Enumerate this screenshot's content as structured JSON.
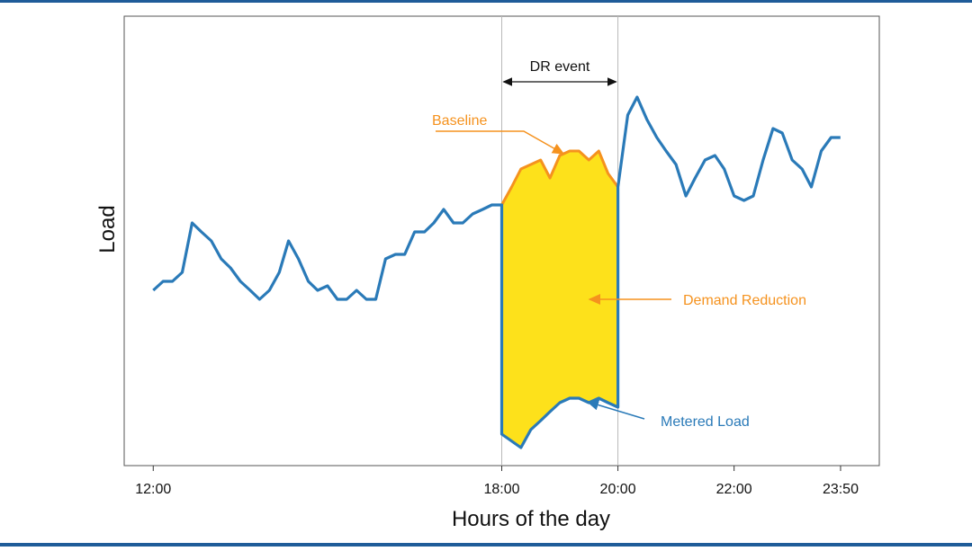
{
  "colors": {
    "frame": "#1f5c99",
    "load_line": "#2a7ab8",
    "baseline_line": "#f5921e",
    "fill": "#fde11b",
    "event_lines": "#b8b8b8",
    "text": "#111111"
  },
  "chart_data": {
    "type": "line",
    "title": "",
    "xlabel": "Hours of the day",
    "ylabel": "Load",
    "x_ticks": [
      "12:00",
      "18:00",
      "20:00",
      "22:00",
      "23:50"
    ],
    "x_tick_hours": [
      12,
      18,
      20,
      22,
      23.8333
    ],
    "xlim": [
      11.5,
      24.5
    ],
    "ylim": [
      0,
      100
    ],
    "grid": false,
    "legend": "none",
    "event": {
      "label": "DR event",
      "start": 18,
      "end": 20
    },
    "series": [
      {
        "name": "Metered Load",
        "role": "metered",
        "x": [
          12.0,
          12.17,
          12.33,
          12.5,
          12.67,
          12.83,
          13.0,
          13.17,
          13.33,
          13.5,
          13.67,
          13.83,
          14.0,
          14.17,
          14.33,
          14.5,
          14.67,
          14.83,
          15.0,
          15.17,
          15.33,
          15.5,
          15.67,
          15.83,
          16.0,
          16.17,
          16.33,
          16.5,
          16.67,
          16.83,
          17.0,
          17.17,
          17.33,
          17.5,
          17.67,
          17.83,
          18.0,
          18.0,
          18.33,
          18.5,
          18.67,
          18.83,
          19.0,
          19.17,
          19.33,
          19.5,
          19.67,
          19.83,
          20.0,
          20.0,
          20.17,
          20.33,
          20.5,
          20.67,
          20.83,
          21.0,
          21.17,
          21.33,
          21.5,
          21.67,
          21.83,
          22.0,
          22.17,
          22.33,
          22.5,
          22.67,
          22.83,
          23.0,
          23.17,
          23.33,
          23.5,
          23.67,
          23.83
        ],
        "y": [
          39,
          41,
          41,
          43,
          54,
          52,
          50,
          46,
          44,
          41,
          39,
          37,
          39,
          43,
          50,
          46,
          41,
          39,
          40,
          37,
          37,
          39,
          37,
          37,
          46,
          47,
          47,
          52,
          52,
          54,
          57,
          54,
          54,
          56,
          57,
          58,
          58,
          7,
          4,
          8,
          10,
          12,
          14,
          15,
          15,
          14,
          15,
          14,
          13,
          62,
          78,
          82,
          77,
          73,
          70,
          67,
          60,
          64,
          68,
          69,
          66,
          60,
          59,
          60,
          68,
          75,
          74,
          68,
          66,
          62,
          70,
          73,
          73
        ]
      },
      {
        "name": "Baseline",
        "role": "baseline",
        "x": [
          18.0,
          18.17,
          18.33,
          18.5,
          18.67,
          18.83,
          19.0,
          19.17,
          19.33,
          19.5,
          19.67,
          19.83,
          20.0
        ],
        "y": [
          58,
          62,
          66,
          67,
          68,
          64,
          69,
          70,
          70,
          68,
          70,
          65,
          62
        ]
      }
    ],
    "annotations": [
      {
        "text": "Baseline",
        "color": "orange"
      },
      {
        "text": "Demand Reduction",
        "color": "orange"
      },
      {
        "text": "Metered Load",
        "color": "blue"
      }
    ]
  }
}
